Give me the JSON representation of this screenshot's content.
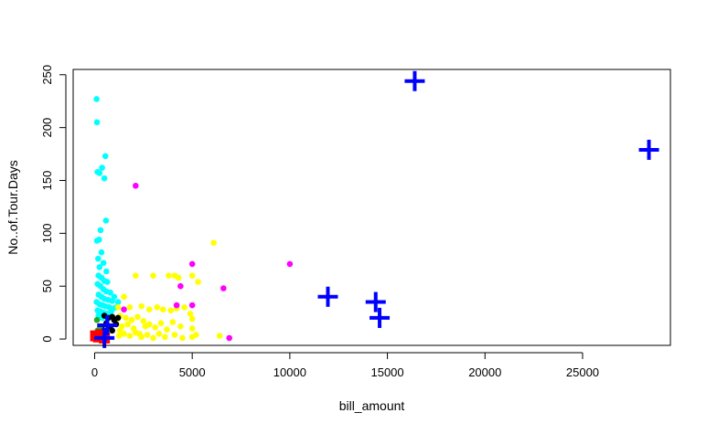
{
  "chart_data": {
    "type": "scatter",
    "title": "",
    "xlabel": "bill_amount",
    "ylabel": "No..of.Tour.Days",
    "xlim": [
      -1100,
      29500
    ],
    "ylim": [
      -6,
      255
    ],
    "xticks": [
      0,
      5000,
      10000,
      15000,
      20000,
      25000
    ],
    "yticks": [
      0,
      50,
      100,
      150,
      200,
      250
    ],
    "grid": false,
    "legend": "none",
    "series": [
      {
        "color": "#00ffff",
        "marker": "circle",
        "points": [
          [
            100,
            227
          ],
          [
            120,
            205
          ],
          [
            550,
            173
          ],
          [
            380,
            162
          ],
          [
            150,
            158
          ],
          [
            250,
            157
          ],
          [
            500,
            152
          ],
          [
            580,
            112
          ],
          [
            300,
            103
          ],
          [
            230,
            94
          ],
          [
            120,
            93
          ],
          [
            350,
            82
          ],
          [
            180,
            76
          ],
          [
            450,
            72
          ],
          [
            250,
            68
          ],
          [
            600,
            64
          ],
          [
            200,
            60
          ],
          [
            350,
            58
          ],
          [
            500,
            55
          ],
          [
            650,
            54
          ],
          [
            150,
            52
          ],
          [
            300,
            50
          ],
          [
            450,
            47
          ],
          [
            600,
            45
          ],
          [
            800,
            44
          ],
          [
            200,
            42
          ],
          [
            350,
            40
          ],
          [
            500,
            38
          ],
          [
            700,
            37
          ],
          [
            900,
            36
          ],
          [
            100,
            35
          ],
          [
            250,
            33
          ],
          [
            400,
            32
          ],
          [
            550,
            31
          ],
          [
            750,
            30
          ],
          [
            950,
            29
          ],
          [
            1100,
            30
          ],
          [
            150,
            27
          ],
          [
            300,
            26
          ],
          [
            450,
            25
          ],
          [
            650,
            24
          ],
          [
            850,
            26
          ],
          [
            200,
            22
          ],
          [
            400,
            20
          ],
          [
            600,
            21
          ],
          [
            1000,
            40
          ],
          [
            1200,
            35
          ]
        ]
      },
      {
        "color": "#ffff00",
        "marker": "circle",
        "points": [
          [
            2100,
            60
          ],
          [
            3000,
            60
          ],
          [
            3800,
            60
          ],
          [
            4100,
            60
          ],
          [
            4300,
            58
          ],
          [
            5000,
            60
          ],
          [
            5300,
            54
          ],
          [
            6100,
            91
          ],
          [
            6400,
            3
          ],
          [
            1500,
            40
          ],
          [
            1200,
            30
          ],
          [
            1800,
            30
          ],
          [
            2400,
            31
          ],
          [
            2800,
            28
          ],
          [
            3200,
            30
          ],
          [
            3500,
            28
          ],
          [
            3900,
            27
          ],
          [
            4200,
            29
          ],
          [
            4600,
            30
          ],
          [
            4900,
            24
          ],
          [
            1300,
            22
          ],
          [
            1600,
            20
          ],
          [
            1900,
            18
          ],
          [
            2200,
            21
          ],
          [
            2500,
            17
          ],
          [
            2800,
            14
          ],
          [
            3100,
            11
          ],
          [
            3400,
            15
          ],
          [
            3700,
            9
          ],
          [
            4000,
            16
          ],
          [
            4400,
            12
          ],
          [
            5000,
            19
          ],
          [
            5000,
            10
          ],
          [
            5200,
            4
          ],
          [
            1300,
            8
          ],
          [
            1500,
            5
          ],
          [
            1800,
            3
          ],
          [
            2100,
            6
          ],
          [
            2400,
            2
          ],
          [
            2700,
            4
          ],
          [
            3000,
            1
          ],
          [
            3300,
            5
          ],
          [
            3600,
            2
          ],
          [
            4100,
            4
          ],
          [
            4500,
            1
          ],
          [
            5000,
            2
          ],
          [
            1400,
            12
          ],
          [
            2000,
            10
          ],
          [
            2300,
            5
          ],
          [
            2600,
            12
          ],
          [
            1700,
            14
          ],
          [
            1100,
            15
          ],
          [
            1250,
            3
          ]
        ]
      },
      {
        "color": "#ff00ff",
        "marker": "circle",
        "points": [
          [
            2100,
            145
          ],
          [
            5000,
            71
          ],
          [
            10000,
            71
          ],
          [
            4400,
            50
          ],
          [
            6600,
            48
          ],
          [
            4200,
            32
          ],
          [
            5000,
            32
          ],
          [
            6900,
            1
          ],
          [
            1500,
            28
          ]
        ]
      },
      {
        "color": "#000000",
        "marker": "circle",
        "points": [
          [
            500,
            22
          ],
          [
            700,
            20
          ],
          [
            900,
            21
          ],
          [
            1000,
            18
          ],
          [
            600,
            15
          ],
          [
            800,
            12
          ],
          [
            1200,
            20
          ],
          [
            1100,
            14
          ],
          [
            400,
            9
          ],
          [
            900,
            8
          ]
        ]
      },
      {
        "color": "#22aa22",
        "marker": "circle",
        "points": [
          [
            120,
            18
          ],
          [
            280,
            12
          ],
          [
            150,
            8
          ],
          [
            220,
            5
          ]
        ]
      },
      {
        "color": "#ff0000",
        "marker": "square",
        "points": [
          [
            50,
            3
          ],
          [
            200,
            2
          ],
          [
            500,
            1
          ],
          [
            350,
            4
          ]
        ]
      },
      {
        "color": "#0000ff",
        "marker": "plus",
        "points": [
          [
            16400,
            244
          ],
          [
            28400,
            179
          ],
          [
            11950,
            40
          ],
          [
            14400,
            35
          ],
          [
            14600,
            20
          ],
          [
            500,
            1
          ],
          [
            650,
            13
          ]
        ]
      }
    ]
  }
}
